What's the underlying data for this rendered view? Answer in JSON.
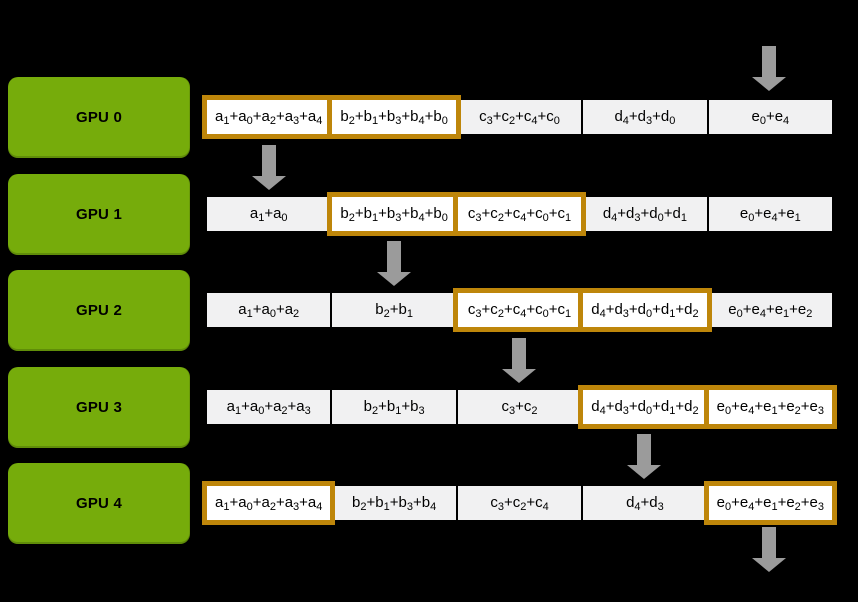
{
  "diagram": {
    "description": "Ring all-reduce scatter-reduce steps across five GPUs",
    "colors": {
      "gpu_green": "#76AC0B",
      "highlight_orange": "#BE860A",
      "arrow_gray": "#9B9B9B",
      "cell_bg": "#F1F1F2",
      "cell_highlight_bg": "#FFFFFF",
      "background": "#000000",
      "text": "#000000"
    },
    "icons": {
      "arrow": "down-arrow-icon"
    },
    "gpus": [
      {
        "label": "GPU 0",
        "cells": [
          {
            "text": "a1+a0+a2+a3+a4",
            "highlighted": true
          },
          {
            "text": "b2+b1+b3+b4+b0",
            "highlighted": true
          },
          {
            "text": "c3+c2+c4+c0",
            "highlighted": false
          },
          {
            "text": "d4+d3+d0",
            "highlighted": false
          },
          {
            "text": "e0+e4",
            "highlighted": false
          }
        ]
      },
      {
        "label": "GPU 1",
        "cells": [
          {
            "text": "a1+a0",
            "highlighted": false
          },
          {
            "text": "b2+b1+b3+b4+b0",
            "highlighted": true
          },
          {
            "text": "c3+c2+c4+c0+c1",
            "highlighted": true
          },
          {
            "text": "d4+d3+d0+d1",
            "highlighted": false
          },
          {
            "text": "e0+e4+e1",
            "highlighted": false
          }
        ]
      },
      {
        "label": "GPU 2",
        "cells": [
          {
            "text": "a1+a0+a2",
            "highlighted": false
          },
          {
            "text": "b2+b1",
            "highlighted": false
          },
          {
            "text": "c3+c2+c4+c0+c1",
            "highlighted": true
          },
          {
            "text": "d4+d3+d0+d1+d2",
            "highlighted": true
          },
          {
            "text": "e0+e4+e1+e2",
            "highlighted": false
          }
        ]
      },
      {
        "label": "GPU 3",
        "cells": [
          {
            "text": "a1+a0+a2+a3",
            "highlighted": false
          },
          {
            "text": "b2+b1+b3",
            "highlighted": false
          },
          {
            "text": "c3+c2",
            "highlighted": false
          },
          {
            "text": "d4+d3+d0+d1+d2",
            "highlighted": true
          },
          {
            "text": "e0+e4+e1+e2+e3",
            "highlighted": true
          }
        ]
      },
      {
        "label": "GPU 4",
        "cells": [
          {
            "text": "a1+a0+a2+a3+a4",
            "highlighted": true
          },
          {
            "text": "b2+b1+b3+b4",
            "highlighted": false
          },
          {
            "text": "c3+c2+c4",
            "highlighted": false
          },
          {
            "text": "d4+d3",
            "highlighted": false
          },
          {
            "text": "e0+e4+e1+e2+e3",
            "highlighted": true
          }
        ]
      }
    ]
  }
}
